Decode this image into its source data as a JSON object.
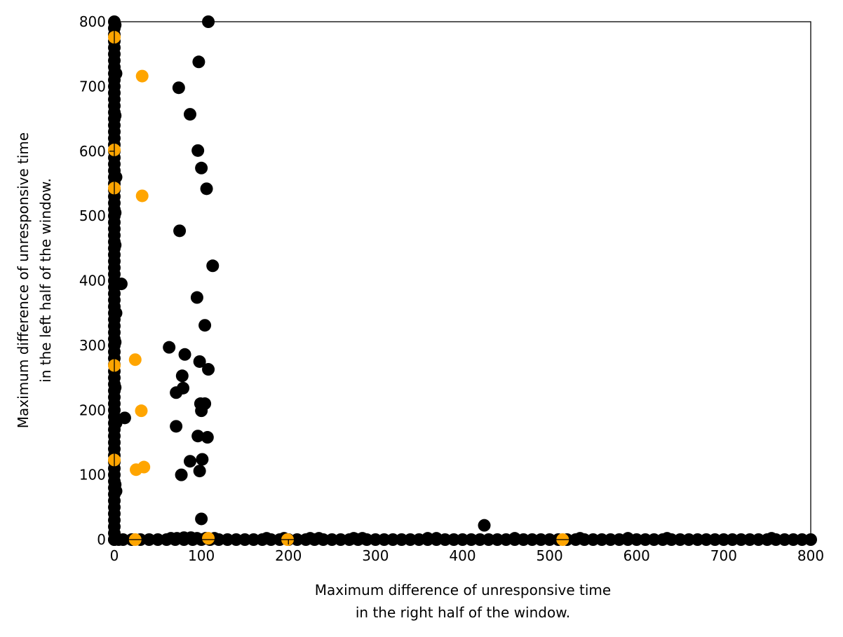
{
  "chart_data": {
    "type": "scatter",
    "title": "",
    "xlabel": [
      "Maximum difference of unresponsive time",
      "in the right half of the window."
    ],
    "ylabel": [
      "Maximum difference of unresponsive time",
      "in the left half of the window."
    ],
    "xlim": [
      0,
      800
    ],
    "ylim": [
      0,
      800
    ],
    "xticks": [
      0,
      100,
      200,
      300,
      400,
      500,
      600,
      700,
      800
    ],
    "yticks": [
      0,
      100,
      200,
      300,
      400,
      500,
      600,
      700,
      800
    ],
    "grid": false,
    "colors": {
      "black_series": "#000000",
      "orange_series": "#ffa500"
    },
    "series": [
      {
        "color_key": "black_series",
        "points": [
          [
            0,
            800
          ],
          [
            0,
            790
          ],
          [
            0,
            780
          ],
          [
            0,
            770
          ],
          [
            0,
            760
          ],
          [
            0,
            750
          ],
          [
            0,
            740
          ],
          [
            0,
            730
          ],
          [
            0,
            720
          ],
          [
            0,
            710
          ],
          [
            0,
            700
          ],
          [
            0,
            690
          ],
          [
            0,
            680
          ],
          [
            0,
            670
          ],
          [
            0,
            660
          ],
          [
            0,
            650
          ],
          [
            0,
            640
          ],
          [
            0,
            630
          ],
          [
            0,
            620
          ],
          [
            0,
            610
          ],
          [
            0,
            600
          ],
          [
            0,
            590
          ],
          [
            0,
            580
          ],
          [
            0,
            570
          ],
          [
            0,
            560
          ],
          [
            0,
            550
          ],
          [
            0,
            540
          ],
          [
            0,
            530
          ],
          [
            0,
            520
          ],
          [
            0,
            510
          ],
          [
            0,
            500
          ],
          [
            0,
            490
          ],
          [
            0,
            480
          ],
          [
            0,
            470
          ],
          [
            0,
            460
          ],
          [
            0,
            450
          ],
          [
            0,
            440
          ],
          [
            0,
            430
          ],
          [
            0,
            420
          ],
          [
            0,
            410
          ],
          [
            0,
            400
          ],
          [
            0,
            390
          ],
          [
            0,
            380
          ],
          [
            0,
            370
          ],
          [
            0,
            360
          ],
          [
            0,
            350
          ],
          [
            0,
            340
          ],
          [
            0,
            330
          ],
          [
            0,
            320
          ],
          [
            0,
            310
          ],
          [
            0,
            300
          ],
          [
            0,
            290
          ],
          [
            0,
            280
          ],
          [
            0,
            270
          ],
          [
            0,
            260
          ],
          [
            0,
            250
          ],
          [
            0,
            240
          ],
          [
            0,
            230
          ],
          [
            0,
            220
          ],
          [
            0,
            210
          ],
          [
            0,
            200
          ],
          [
            0,
            190
          ],
          [
            0,
            180
          ],
          [
            0,
            170
          ],
          [
            0,
            160
          ],
          [
            0,
            150
          ],
          [
            0,
            140
          ],
          [
            0,
            130
          ],
          [
            0,
            120
          ],
          [
            0,
            110
          ],
          [
            0,
            100
          ],
          [
            0,
            90
          ],
          [
            0,
            80
          ],
          [
            0,
            70
          ],
          [
            0,
            60
          ],
          [
            0,
            50
          ],
          [
            0,
            40
          ],
          [
            0,
            30
          ],
          [
            0,
            20
          ],
          [
            0,
            10
          ],
          [
            0,
            0
          ],
          [
            1,
            795
          ],
          [
            1,
            655
          ],
          [
            1,
            505
          ],
          [
            1,
            455
          ],
          [
            1,
            305
          ],
          [
            1,
            235
          ],
          [
            1,
            85
          ],
          [
            2,
            720
          ],
          [
            2,
            560
          ],
          [
            2,
            350
          ],
          [
            2,
            180
          ],
          [
            2,
            75
          ],
          [
            8,
            395
          ],
          [
            12,
            188
          ],
          [
            0,
            0
          ],
          [
            5,
            0
          ],
          [
            10,
            0
          ],
          [
            20,
            0
          ],
          [
            30,
            0
          ],
          [
            40,
            0
          ],
          [
            50,
            0
          ],
          [
            60,
            0
          ],
          [
            70,
            0
          ],
          [
            80,
            0
          ],
          [
            90,
            0
          ],
          [
            100,
            0
          ],
          [
            110,
            0
          ],
          [
            120,
            0
          ],
          [
            130,
            0
          ],
          [
            140,
            0
          ],
          [
            150,
            0
          ],
          [
            160,
            0
          ],
          [
            170,
            0
          ],
          [
            180,
            0
          ],
          [
            190,
            0
          ],
          [
            200,
            0
          ],
          [
            210,
            0
          ],
          [
            220,
            0
          ],
          [
            230,
            0
          ],
          [
            240,
            0
          ],
          [
            250,
            0
          ],
          [
            260,
            0
          ],
          [
            270,
            0
          ],
          [
            280,
            0
          ],
          [
            290,
            0
          ],
          [
            300,
            0
          ],
          [
            310,
            0
          ],
          [
            320,
            0
          ],
          [
            330,
            0
          ],
          [
            340,
            0
          ],
          [
            350,
            0
          ],
          [
            360,
            0
          ],
          [
            370,
            0
          ],
          [
            380,
            0
          ],
          [
            390,
            0
          ],
          [
            400,
            0
          ],
          [
            410,
            0
          ],
          [
            420,
            0
          ],
          [
            430,
            0
          ],
          [
            440,
            0
          ],
          [
            450,
            0
          ],
          [
            460,
            0
          ],
          [
            470,
            0
          ],
          [
            480,
            0
          ],
          [
            490,
            0
          ],
          [
            500,
            0
          ],
          [
            510,
            0
          ],
          [
            520,
            0
          ],
          [
            530,
            0
          ],
          [
            540,
            0
          ],
          [
            550,
            0
          ],
          [
            560,
            0
          ],
          [
            570,
            0
          ],
          [
            580,
            0
          ],
          [
            590,
            0
          ],
          [
            600,
            0
          ],
          [
            610,
            0
          ],
          [
            620,
            0
          ],
          [
            630,
            0
          ],
          [
            640,
            0
          ],
          [
            650,
            0
          ],
          [
            660,
            0
          ],
          [
            670,
            0
          ],
          [
            680,
            0
          ],
          [
            690,
            0
          ],
          [
            700,
            0
          ],
          [
            710,
            0
          ],
          [
            720,
            0
          ],
          [
            730,
            0
          ],
          [
            740,
            0
          ],
          [
            750,
            0
          ],
          [
            760,
            0
          ],
          [
            770,
            0
          ],
          [
            780,
            0
          ],
          [
            790,
            0
          ],
          [
            800,
            0
          ],
          [
            65,
            2
          ],
          [
            72,
            2
          ],
          [
            80,
            3
          ],
          [
            88,
            3
          ],
          [
            95,
            2
          ],
          [
            105,
            2
          ],
          [
            115,
            2
          ],
          [
            175,
            2
          ],
          [
            195,
            2
          ],
          [
            225,
            2
          ],
          [
            235,
            2
          ],
          [
            275,
            2
          ],
          [
            285,
            2
          ],
          [
            360,
            2
          ],
          [
            370,
            2
          ],
          [
            460,
            2
          ],
          [
            535,
            2
          ],
          [
            590,
            2
          ],
          [
            635,
            2
          ],
          [
            755,
            2
          ],
          [
            425,
            22
          ],
          [
            108,
            800
          ],
          [
            97,
            738
          ],
          [
            74,
            698
          ],
          [
            87,
            657
          ],
          [
            96,
            601
          ],
          [
            100,
            574
          ],
          [
            106,
            542
          ],
          [
            75,
            477
          ],
          [
            113,
            423
          ],
          [
            95,
            374
          ],
          [
            104,
            331
          ],
          [
            63,
            297
          ],
          [
            81,
            286
          ],
          [
            98,
            275
          ],
          [
            108,
            263
          ],
          [
            78,
            253
          ],
          [
            79,
            234
          ],
          [
            71,
            227
          ],
          [
            99,
            210
          ],
          [
            104,
            210
          ],
          [
            100,
            199
          ],
          [
            71,
            175
          ],
          [
            96,
            160
          ],
          [
            107,
            158
          ],
          [
            101,
            124
          ],
          [
            87,
            121
          ],
          [
            98,
            106
          ],
          [
            77,
            100
          ],
          [
            100,
            32
          ]
        ]
      },
      {
        "color_key": "orange_series",
        "points": [
          [
            0,
            776
          ],
          [
            0,
            602
          ],
          [
            0,
            543
          ],
          [
            0,
            269
          ],
          [
            0,
            123
          ],
          [
            32,
            716
          ],
          [
            32,
            531
          ],
          [
            24,
            278
          ],
          [
            31,
            199
          ],
          [
            34,
            112
          ],
          [
            25,
            108
          ],
          [
            24,
            0
          ],
          [
            108,
            2
          ],
          [
            199,
            0
          ],
          [
            515,
            0
          ]
        ]
      }
    ]
  }
}
